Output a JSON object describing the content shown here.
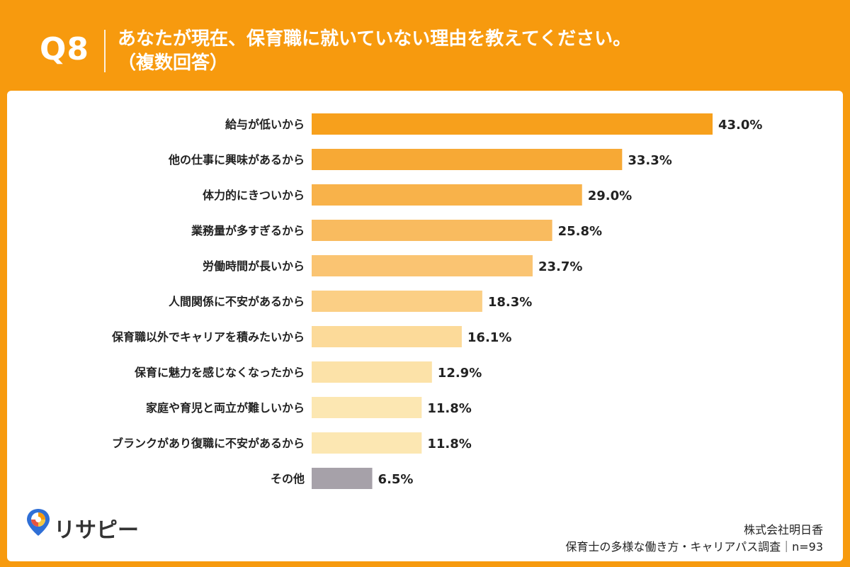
{
  "header": {
    "question_number": "Q8",
    "question_line1": "あなたが現在、保育職に就いていない理由を教えてください。",
    "question_line2": "（複数回答）"
  },
  "chart_data": {
    "type": "bar",
    "orientation": "horizontal",
    "categories": [
      "給与が低いから",
      "他の仕事に興味があるから",
      "体力的にきついから",
      "業務量が多すぎるから",
      "労働時間が長いから",
      "人間関係に不安があるから",
      "保育職以外でキャリアを積みたいから",
      "保育に魅力を感じなくなったから",
      "家庭や育児と両立が難しいから",
      "ブランクがあり復職に不安があるから",
      "その他"
    ],
    "values": [
      43.0,
      33.3,
      29.0,
      25.8,
      23.7,
      18.3,
      16.1,
      12.9,
      11.8,
      11.8,
      6.5
    ],
    "value_labels": [
      "43.0%",
      "33.3%",
      "29.0%",
      "25.8%",
      "23.7%",
      "18.3%",
      "16.1%",
      "12.9%",
      "11.8%",
      "11.8%",
      "6.5%"
    ],
    "unit": "%",
    "colors": [
      "#F7A01C",
      "#F7A935",
      "#F8B24A",
      "#F9BB5F",
      "#FAC472",
      "#FBCF85",
      "#FCDA99",
      "#FCE2A8",
      "#FCE7B2",
      "#FCE7B2",
      "#A6A1A9"
    ],
    "xlim": [
      0,
      50
    ],
    "grid": false,
    "legend": "none"
  },
  "footer": {
    "logo_text": "リサピー",
    "company": "株式会社明日香",
    "survey": "保育士の多様な働き方・キャリアパス調査｜n=93"
  },
  "theme": {
    "background": "#F79A0E",
    "panel": "#FFFFFF",
    "logo_orange": "#F79A0E",
    "logo_blue": "#2F6FD6"
  }
}
